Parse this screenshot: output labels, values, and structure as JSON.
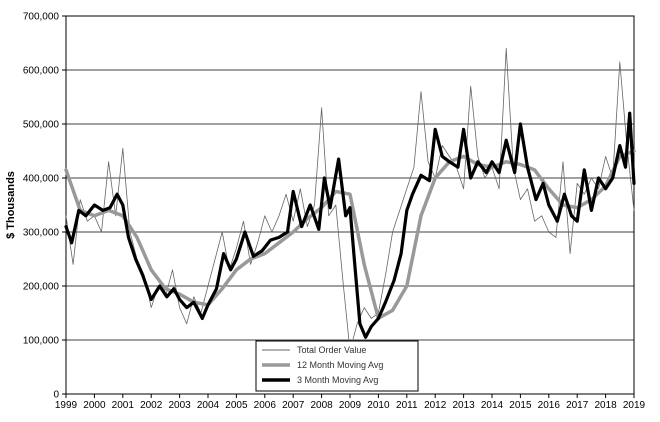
{
  "chart_data": {
    "type": "line",
    "title": "",
    "xlabel": "",
    "ylabel": "$ Thousands",
    "ylim": [
      0,
      700000
    ],
    "xlim": [
      1999,
      2019
    ],
    "grid": "horizontal",
    "legend_position": "bottom-center",
    "x_ticks": [
      "1999",
      "2000",
      "2001",
      "2002",
      "2003",
      "2004",
      "2005",
      "2006",
      "2007",
      "2008",
      "2009",
      "2010",
      "2011",
      "2012",
      "2013",
      "2014",
      "2015",
      "2016",
      "2017",
      "2018",
      "2019"
    ],
    "y_ticks": [
      "0",
      "100,000",
      "200,000",
      "300,000",
      "400,000",
      "500,000",
      "600,000",
      "700,000"
    ],
    "series": [
      {
        "name": "Total Order Value",
        "color": "#666666",
        "x": [
          1999.0,
          1999.25,
          1999.5,
          1999.75,
          2000.0,
          2000.25,
          2000.5,
          2000.75,
          2001.0,
          2001.25,
          2001.5,
          2001.75,
          2002.0,
          2002.25,
          2002.5,
          2002.75,
          2003.0,
          2003.25,
          2003.5,
          2003.75,
          2004.0,
          2004.25,
          2004.5,
          2004.75,
          2005.0,
          2005.25,
          2005.5,
          2005.75,
          2006.0,
          2006.25,
          2006.5,
          2006.75,
          2007.0,
          2007.25,
          2007.5,
          2007.75,
          2008.0,
          2008.25,
          2008.5,
          2008.75,
          2009.0,
          2009.25,
          2009.5,
          2009.75,
          2010.0,
          2010.25,
          2010.5,
          2010.75,
          2011.0,
          2011.25,
          2011.5,
          2011.75,
          2012.0,
          2012.25,
          2012.5,
          2012.75,
          2013.0,
          2013.25,
          2013.5,
          2013.75,
          2014.0,
          2014.25,
          2014.5,
          2014.75,
          2015.0,
          2015.25,
          2015.5,
          2015.75,
          2016.0,
          2016.25,
          2016.5,
          2016.75,
          2017.0,
          2017.25,
          2017.5,
          2017.75,
          2018.0,
          2018.25,
          2018.5,
          2018.75,
          2019.0
        ],
        "values": [
          330000,
          240000,
          360000,
          320000,
          330000,
          300000,
          430000,
          330000,
          455000,
          300000,
          250000,
          220000,
          160000,
          200000,
          180000,
          230000,
          160000,
          130000,
          180000,
          150000,
          200000,
          250000,
          300000,
          230000,
          270000,
          320000,
          240000,
          280000,
          330000,
          300000,
          330000,
          370000,
          320000,
          380000,
          310000,
          350000,
          530000,
          330000,
          350000,
          210000,
          80000,
          130000,
          160000,
          140000,
          150000,
          220000,
          300000,
          340000,
          380000,
          420000,
          560000,
          430000,
          400000,
          460000,
          440000,
          420000,
          380000,
          570000,
          440000,
          400000,
          420000,
          380000,
          640000,
          420000,
          360000,
          380000,
          320000,
          330000,
          300000,
          290000,
          430000,
          260000,
          390000,
          370000,
          400000,
          380000,
          440000,
          400000,
          615000,
          460000,
          340000
        ]
      },
      {
        "name": "12 Month Moving Avg",
        "color": "#999999",
        "x": [
          1999.0,
          1999.5,
          2000.0,
          2000.5,
          2001.0,
          2001.5,
          2002.0,
          2002.5,
          2003.0,
          2003.5,
          2004.0,
          2004.5,
          2005.0,
          2005.5,
          2006.0,
          2006.5,
          2007.0,
          2007.5,
          2008.0,
          2008.5,
          2009.0,
          2009.5,
          2010.0,
          2010.5,
          2011.0,
          2011.5,
          2012.0,
          2012.5,
          2013.0,
          2013.5,
          2014.0,
          2014.5,
          2015.0,
          2015.5,
          2016.0,
          2016.5,
          2017.0,
          2017.5,
          2018.0,
          2018.5,
          2019.0
        ],
        "values": [
          415000,
          340000,
          330000,
          340000,
          330000,
          290000,
          230000,
          195000,
          185000,
          170000,
          165000,
          195000,
          230000,
          250000,
          260000,
          280000,
          300000,
          325000,
          345000,
          375000,
          370000,
          240000,
          140000,
          155000,
          200000,
          330000,
          400000,
          430000,
          440000,
          425000,
          420000,
          430000,
          425000,
          415000,
          380000,
          350000,
          345000,
          360000,
          385000,
          440000,
          450000
        ]
      },
      {
        "name": "3 Month Moving Avg",
        "color": "#000000",
        "x": [
          1999.0,
          1999.2,
          1999.45,
          1999.7,
          2000.0,
          2000.3,
          2000.55,
          2000.8,
          2001.0,
          2001.2,
          2001.45,
          2001.7,
          2002.0,
          2002.3,
          2002.55,
          2002.8,
          2003.0,
          2003.25,
          2003.5,
          2003.8,
          2004.0,
          2004.3,
          2004.55,
          2004.8,
          2005.0,
          2005.3,
          2005.6,
          2005.9,
          2006.2,
          2006.5,
          2006.8,
          2007.0,
          2007.3,
          2007.6,
          2007.9,
          2008.1,
          2008.3,
          2008.6,
          2008.85,
          2009.0,
          2009.15,
          2009.35,
          2009.55,
          2009.75,
          2010.0,
          2010.25,
          2010.55,
          2010.8,
          2011.0,
          2011.2,
          2011.5,
          2011.8,
          2012.0,
          2012.25,
          2012.5,
          2012.8,
          2013.0,
          2013.25,
          2013.5,
          2013.8,
          2014.0,
          2014.25,
          2014.5,
          2014.8,
          2015.0,
          2015.25,
          2015.55,
          2015.8,
          2016.0,
          2016.3,
          2016.55,
          2016.8,
          2017.0,
          2017.25,
          2017.5,
          2017.75,
          2018.0,
          2018.25,
          2018.5,
          2018.7,
          2018.85,
          2019.0
        ],
        "values": [
          310000,
          280000,
          340000,
          330000,
          350000,
          340000,
          345000,
          370000,
          350000,
          290000,
          250000,
          220000,
          175000,
          200000,
          180000,
          195000,
          175000,
          160000,
          170000,
          140000,
          165000,
          195000,
          260000,
          230000,
          250000,
          300000,
          255000,
          265000,
          285000,
          290000,
          300000,
          375000,
          310000,
          350000,
          305000,
          400000,
          345000,
          435000,
          330000,
          345000,
          250000,
          130000,
          105000,
          125000,
          140000,
          170000,
          210000,
          260000,
          340000,
          370000,
          405000,
          395000,
          490000,
          440000,
          430000,
          420000,
          490000,
          400000,
          430000,
          410000,
          430000,
          410000,
          470000,
          410000,
          500000,
          420000,
          360000,
          390000,
          350000,
          320000,
          370000,
          330000,
          320000,
          415000,
          340000,
          400000,
          380000,
          400000,
          460000,
          420000,
          520000,
          390000
        ]
      }
    ]
  }
}
